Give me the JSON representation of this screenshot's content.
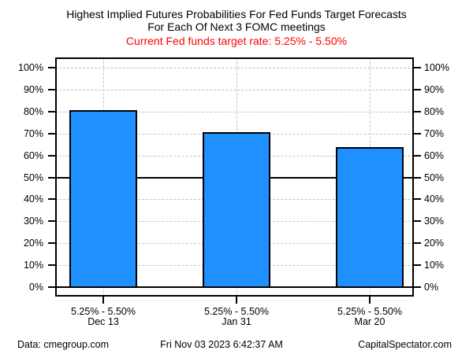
{
  "header": {
    "title_line1": "Highest Implied Futures Probabilities For Fed Funds Target Forecasts",
    "title_line2": "For Each Of Next 3 FOMC meetings",
    "subtitle": "Current Fed funds target rate: 5.25% - 5.50%",
    "subtitle_color": "#ff0000"
  },
  "chart_data": {
    "type": "bar",
    "title": "Highest Implied Futures Probabilities For Fed Funds Target Forecasts For Each Of Next 3 FOMC meetings",
    "subtitle": "Current Fed funds target rate: 5.25% - 5.50%",
    "categories": [
      "Dec 13",
      "Jan 31",
      "Mar 20"
    ],
    "category_rate_labels": [
      "5.25% - 5.50%",
      "5.25% - 5.50%",
      "5.25% - 5.50%"
    ],
    "values": [
      80.6,
      70.7,
      63.7
    ],
    "unit": "%",
    "ylim": [
      0,
      100
    ],
    "y_ticks": [
      0,
      10,
      20,
      30,
      40,
      50,
      60,
      70,
      80,
      90,
      100
    ],
    "y_tick_labels": [
      "0%",
      "10%",
      "20%",
      "30%",
      "40%",
      "50%",
      "60%",
      "70%",
      "80%",
      "90%",
      "100%"
    ],
    "reference_lines": [
      {
        "y": 50,
        "style": "solid",
        "color": "#000000"
      },
      {
        "y": 0,
        "style": "solid",
        "color": "#000000"
      }
    ],
    "grid": {
      "style": "dashed",
      "color": "#c4c4c4",
      "horizontal": true,
      "vertical_at_bar_centers": true
    },
    "legend": "none",
    "axes": "left and right mirrored",
    "bar_color": "#1e90ff",
    "bar_border_color": "#000000"
  },
  "footer": {
    "left": "Data: cmegroup.com",
    "center": "Fri Nov 03 2023 6:42:37 AM",
    "right": "CapitalSpectator.com"
  }
}
